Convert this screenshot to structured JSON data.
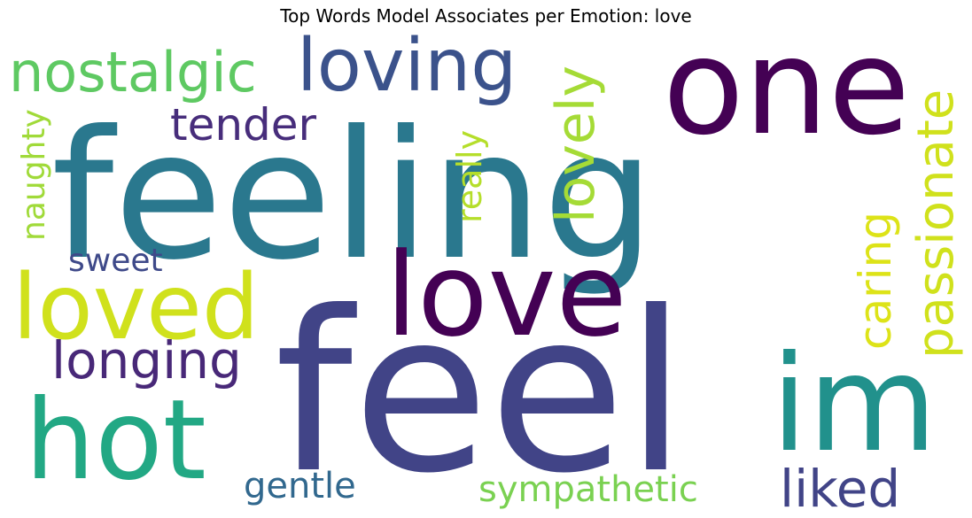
{
  "chart_data": {
    "type": "wordcloud",
    "title": "Top Words Model Associates per Emotion: love",
    "words": [
      {
        "text": "feel",
        "color": "#414487"
      },
      {
        "text": "feeling",
        "color": "#2a788e"
      },
      {
        "text": "one",
        "color": "#440154"
      },
      {
        "text": "love",
        "color": "#440154"
      },
      {
        "text": "im",
        "color": "#21918c"
      },
      {
        "text": "hot",
        "color": "#22a884"
      },
      {
        "text": "loved",
        "color": "#d0e11c"
      },
      {
        "text": "loving",
        "color": "#3b528b"
      },
      {
        "text": "nostalgic",
        "color": "#5ec962"
      },
      {
        "text": "passionate",
        "color": "#d0e11c"
      },
      {
        "text": "lovely",
        "color": "#a5db36"
      },
      {
        "text": "longing",
        "color": "#482878"
      },
      {
        "text": "liked",
        "color": "#414487"
      },
      {
        "text": "caring",
        "color": "#dde318"
      },
      {
        "text": "tender",
        "color": "#472d7b"
      },
      {
        "text": "sympathetic",
        "color": "#7ad151"
      },
      {
        "text": "gentle",
        "color": "#31688e"
      },
      {
        "text": "really",
        "color": "#b5de2b"
      },
      {
        "text": "naughty",
        "color": "#a0da39"
      },
      {
        "text": "sweet",
        "color": "#3e4989"
      }
    ]
  }
}
